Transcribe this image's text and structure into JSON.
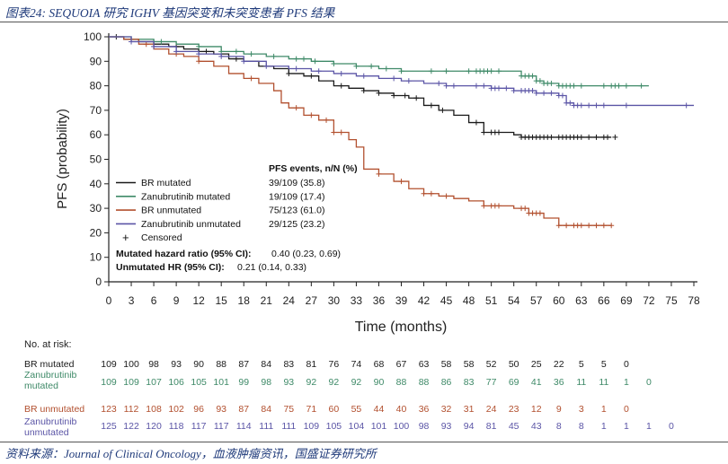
{
  "figure_title": "图表24: SEQUOIA 研究 IGHV 基因突变和未突变患者 PFS 结果",
  "source": "资料来源：Journal of Clinical Oncology，血液肿瘤资讯，国盛证券研究所",
  "colors": {
    "br_mutated": "#1a1a1a",
    "zanu_mutated": "#3f8a68",
    "br_unmutated": "#b2502f",
    "zanu_unmutated": "#5b55a6",
    "axis": "#222222"
  },
  "legend": {
    "header": "PFS events, n/N (%)",
    "censored_symbol": "+",
    "censored_label": "Censored",
    "entries": [
      {
        "label": "BR mutated",
        "events": "39/109 (35.8)"
      },
      {
        "label": "Zanubrutinib mutated",
        "events": "19/109 (17.4)"
      },
      {
        "label": "BR unmutated",
        "events": "75/123 (61.0)"
      },
      {
        "label": "Zanubrutinib unmutated",
        "events": "29/125 (23.2)"
      }
    ],
    "hr_mutated_label": "Mutated hazard ratio (95% CI):",
    "hr_mutated_value": "0.40 (0.23, 0.69)",
    "hr_unmutated_label": "Unmutated HR (95% CI):",
    "hr_unmutated_value": "0.21 (0.14, 0.33)"
  },
  "chart_data": {
    "type": "line",
    "title": "",
    "xlabel": "Time (months)",
    "ylabel": "PFS (probability)",
    "xlim": [
      0,
      78
    ],
    "ylim": [
      0,
      100
    ],
    "xticks": [
      0,
      3,
      6,
      9,
      12,
      15,
      18,
      21,
      24,
      27,
      30,
      33,
      36,
      39,
      42,
      45,
      48,
      51,
      54,
      57,
      60,
      63,
      66,
      69,
      72,
      75,
      78
    ],
    "yticks": [
      0,
      10,
      20,
      30,
      40,
      50,
      60,
      70,
      80,
      90,
      100
    ],
    "series": [
      {
        "name": "BR mutated",
        "color": "#1a1a1a",
        "points": [
          [
            0,
            100
          ],
          [
            2,
            99
          ],
          [
            4,
            98
          ],
          [
            6,
            97
          ],
          [
            8,
            96
          ],
          [
            10,
            95
          ],
          [
            12,
            94
          ],
          [
            14,
            93
          ],
          [
            16,
            91
          ],
          [
            18,
            90
          ],
          [
            20,
            88
          ],
          [
            22,
            87
          ],
          [
            24,
            85
          ],
          [
            26,
            84
          ],
          [
            28,
            82
          ],
          [
            30,
            80
          ],
          [
            32,
            79
          ],
          [
            34,
            78
          ],
          [
            36,
            77
          ],
          [
            38,
            76
          ],
          [
            40,
            75
          ],
          [
            42,
            72
          ],
          [
            44,
            70
          ],
          [
            46,
            68
          ],
          [
            48,
            65
          ],
          [
            50,
            61
          ],
          [
            52,
            61
          ],
          [
            54,
            60
          ],
          [
            55,
            59
          ],
          [
            67,
            59
          ]
        ],
        "censored": [
          1,
          3,
          9,
          13,
          17,
          24,
          27,
          31,
          34,
          36,
          38,
          39.5,
          41,
          43,
          44.5,
          49,
          50,
          51,
          51.5,
          52,
          55,
          55.5,
          56,
          56.5,
          57,
          57.5,
          58,
          58.5,
          59,
          60,
          60.5,
          61,
          61.5,
          62,
          62.5,
          63,
          64,
          65,
          66,
          66.5,
          67.5
        ]
      },
      {
        "name": "Zanubrutinib mutated",
        "color": "#3f8a68",
        "points": [
          [
            0,
            100
          ],
          [
            3,
            99
          ],
          [
            6,
            98
          ],
          [
            9,
            97
          ],
          [
            12,
            96
          ],
          [
            15,
            94
          ],
          [
            18,
            93
          ],
          [
            21,
            92
          ],
          [
            24,
            91
          ],
          [
            27,
            90
          ],
          [
            30,
            89
          ],
          [
            33,
            88
          ],
          [
            36,
            87
          ],
          [
            39,
            86
          ],
          [
            42,
            86
          ],
          [
            48,
            86
          ],
          [
            55,
            84
          ],
          [
            57,
            82
          ],
          [
            58,
            81
          ],
          [
            60,
            80
          ],
          [
            72,
            80
          ]
        ],
        "censored": [
          6,
          7,
          12,
          15,
          17,
          19,
          22,
          25,
          26,
          27.5,
          30,
          33,
          35,
          37,
          39,
          43,
          45,
          48,
          49,
          49.5,
          50,
          50.5,
          51,
          52,
          55,
          55.5,
          56,
          56.5,
          57,
          57.5,
          58,
          58.5,
          59,
          60,
          60.5,
          61,
          61.5,
          62,
          63,
          66,
          67,
          67.5,
          68,
          69,
          71
        ]
      },
      {
        "name": "BR unmutated",
        "color": "#b2502f",
        "points": [
          [
            0,
            100
          ],
          [
            2,
            99
          ],
          [
            4,
            97
          ],
          [
            6,
            95
          ],
          [
            8,
            93
          ],
          [
            10,
            92
          ],
          [
            12,
            90
          ],
          [
            14,
            88
          ],
          [
            16,
            85
          ],
          [
            18,
            83
          ],
          [
            20,
            81
          ],
          [
            22,
            78
          ],
          [
            23,
            73
          ],
          [
            24,
            71
          ],
          [
            26,
            68
          ],
          [
            28,
            66
          ],
          [
            30,
            61
          ],
          [
            32,
            58
          ],
          [
            33,
            55
          ],
          [
            34,
            46
          ],
          [
            36,
            44
          ],
          [
            38,
            41
          ],
          [
            40,
            38
          ],
          [
            42,
            36
          ],
          [
            44,
            35
          ],
          [
            46,
            34
          ],
          [
            48,
            33
          ],
          [
            50,
            31
          ],
          [
            54,
            30
          ],
          [
            56,
            28
          ],
          [
            58,
            26
          ],
          [
            60,
            23
          ],
          [
            67,
            23
          ]
        ],
        "censored": [
          5,
          9,
          12,
          19,
          25,
          27,
          29,
          30,
          31,
          36,
          39,
          42,
          43,
          45,
          50,
          51,
          51.5,
          52,
          55,
          55.5,
          56,
          56.5,
          57,
          57.5,
          60,
          61,
          62,
          62.5,
          63,
          64,
          65,
          66,
          67
        ]
      },
      {
        "name": "Zanubrutinib unmutated",
        "color": "#5b55a6",
        "points": [
          [
            0,
            100
          ],
          [
            3,
            98
          ],
          [
            6,
            96
          ],
          [
            9,
            94
          ],
          [
            12,
            93
          ],
          [
            15,
            92
          ],
          [
            18,
            90
          ],
          [
            21,
            88
          ],
          [
            24,
            87
          ],
          [
            27,
            86
          ],
          [
            30,
            85
          ],
          [
            33,
            84
          ],
          [
            36,
            83
          ],
          [
            39,
            82
          ],
          [
            42,
            81
          ],
          [
            45,
            80
          ],
          [
            48,
            80
          ],
          [
            51,
            79
          ],
          [
            54,
            78
          ],
          [
            57,
            77
          ],
          [
            60,
            76
          ],
          [
            61,
            73
          ],
          [
            62,
            72
          ],
          [
            78,
            72
          ]
        ],
        "censored": [
          3,
          6,
          9,
          12,
          15,
          18,
          21,
          25,
          28,
          31,
          34,
          38,
          40,
          44,
          45,
          46,
          49,
          50,
          51,
          51.5,
          52,
          53,
          54,
          55,
          55.5,
          56,
          56.5,
          57,
          58,
          59,
          60,
          60.5,
          61,
          61.5,
          62,
          62.5,
          63,
          64,
          65,
          66,
          69,
          77
        ]
      }
    ],
    "at_risk": {
      "title": "No. at risk:",
      "rows": [
        {
          "label": "BR mutated",
          "color": "#1a1a1a",
          "values": [
            "109",
            "100",
            "98",
            "93",
            "90",
            "88",
            "87",
            "84",
            "83",
            "81",
            "76",
            "74",
            "68",
            "67",
            "63",
            "58",
            "58",
            "52",
            "50",
            "25",
            "22",
            "5",
            "5",
            "0"
          ]
        },
        {
          "label": "Zanubrutinib mutated",
          "color": "#3f8a68",
          "values": [
            "109",
            "109",
            "107",
            "106",
            "105",
            "101",
            "99",
            "98",
            "93",
            "92",
            "92",
            "92",
            "90",
            "88",
            "88",
            "86",
            "83",
            "77",
            "69",
            "41",
            "36",
            "11",
            "11",
            "1",
            "0"
          ]
        },
        {
          "label": "BR unmutated",
          "color": "#b2502f",
          "values": [
            "123",
            "112",
            "108",
            "102",
            "96",
            "93",
            "87",
            "84",
            "75",
            "71",
            "60",
            "55",
            "44",
            "40",
            "36",
            "32",
            "31",
            "24",
            "23",
            "12",
            "9",
            "3",
            "1",
            "0"
          ]
        },
        {
          "label": "Zanubrutinib unmutated",
          "color": "#5b55a6",
          "values": [
            "125",
            "122",
            "120",
            "118",
            "117",
            "117",
            "114",
            "111",
            "111",
            "109",
            "105",
            "104",
            "101",
            "100",
            "98",
            "93",
            "94",
            "81",
            "45",
            "43",
            "8",
            "8",
            "1",
            "1",
            "1",
            "0"
          ]
        }
      ]
    }
  }
}
